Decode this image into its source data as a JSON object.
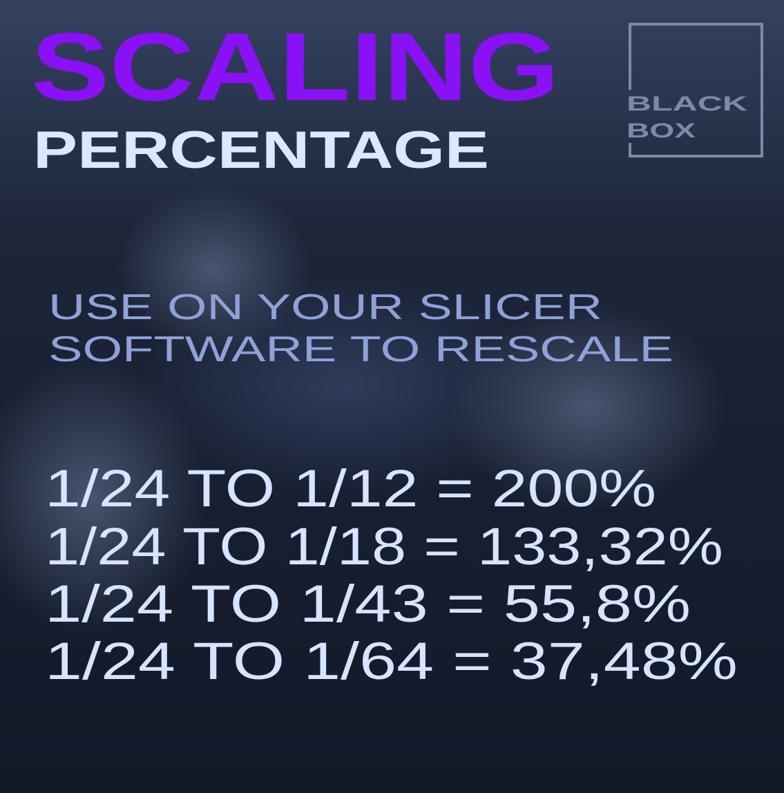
{
  "title": "SCALING",
  "subtitle": "PERCENTAGE",
  "logo": {
    "line1": "BLACK",
    "line2": "BOX"
  },
  "instructions": [
    "USE ON YOUR SLICER",
    "SOFTWARE TO RESCALE"
  ],
  "conversions": [
    {
      "text": "1/24 TO 1/12 = 200%",
      "from": "1/24",
      "to": "1/12",
      "percentage": "200%"
    },
    {
      "text": "1/24 TO 1/18 = 133,32%",
      "from": "1/24",
      "to": "1/18",
      "percentage": "133,32%"
    },
    {
      "text": "1/24 TO 1/43 = 55,8%",
      "from": "1/24",
      "to": "1/43",
      "percentage": "55,8%"
    },
    {
      "text": "1/24 TO 1/64 = 37,48%",
      "from": "1/24",
      "to": "1/64",
      "percentage": "37,48%"
    }
  ],
  "colors": {
    "title": "#8a10f5",
    "subtitle": "#dbe8ff",
    "instructions": "#8ea2d8",
    "conversions": "#d6e4ff",
    "logo": "#7d8aa5",
    "background": "#151c2e"
  }
}
